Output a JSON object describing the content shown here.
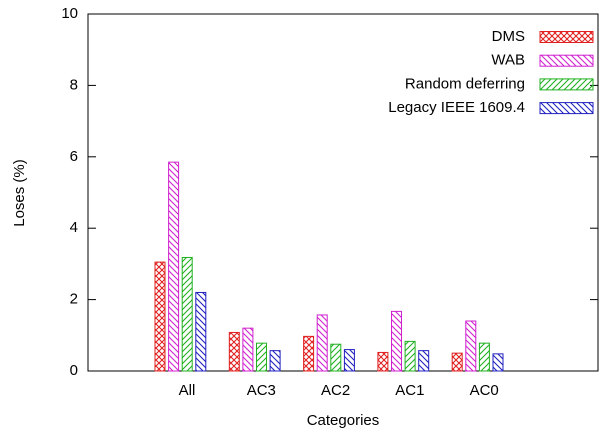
{
  "chart_data": {
    "type": "bar",
    "x_label": "Categories",
    "y_label": "Loses (%)",
    "categories": [
      "All",
      "AC3",
      "AC2",
      "AC1",
      "AC0"
    ],
    "series": [
      {
        "name": "DMS",
        "color": "#e02020",
        "hatch": "cross",
        "values": [
          3.05,
          1.08,
          0.97,
          0.52,
          0.5
        ]
      },
      {
        "name": "WAB",
        "color": "#d020d0",
        "hatch": "back",
        "values": [
          5.85,
          1.2,
          1.57,
          1.67,
          1.4
        ]
      },
      {
        "name": "Random deferring",
        "color": "#20b020",
        "hatch": "forward",
        "values": [
          3.18,
          0.78,
          0.75,
          0.83,
          0.78
        ]
      },
      {
        "name": "Legacy IEEE 1609.4",
        "color": "#2020c0",
        "hatch": "back",
        "values": [
          2.2,
          0.57,
          0.6,
          0.57,
          0.48
        ]
      }
    ],
    "ylim": [
      0,
      10
    ],
    "yticks": [
      0,
      2,
      4,
      6,
      8,
      10
    ],
    "legend": "upper right"
  }
}
